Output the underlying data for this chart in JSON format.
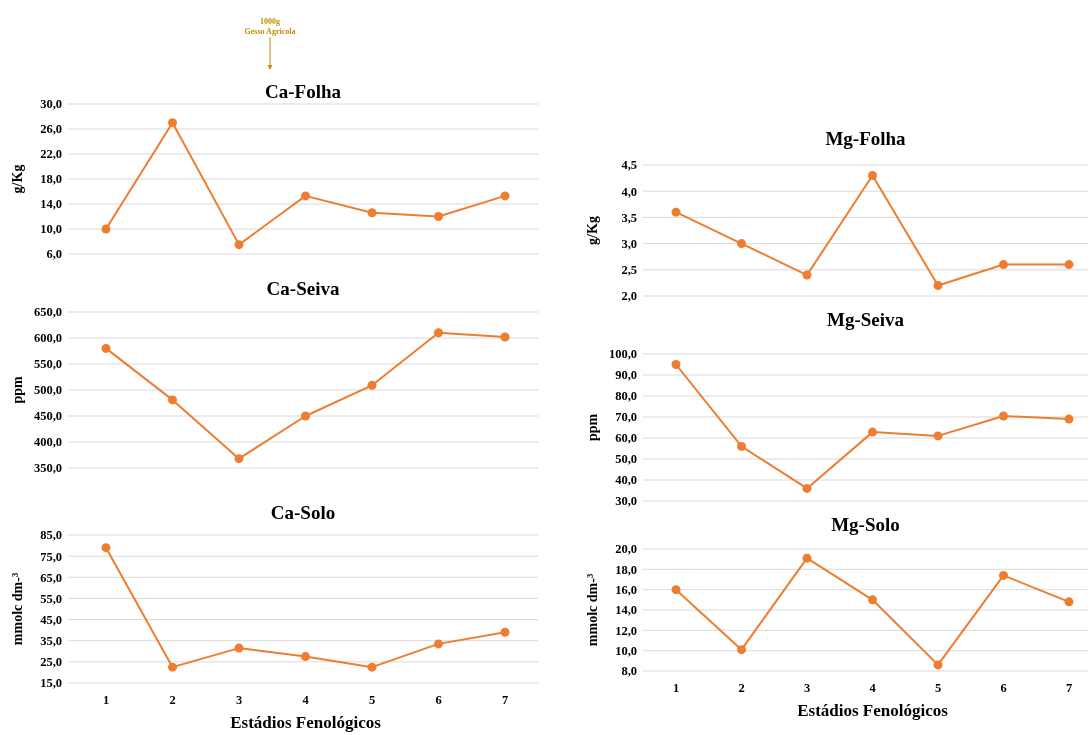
{
  "chart_data": [
    {
      "type": "line",
      "title": "Ca-Folha",
      "ylabel": "g/Kg",
      "categories": [
        null,
        null,
        null,
        null,
        null,
        null,
        null
      ],
      "series": [
        {
          "color": "#ed7d31",
          "values": [
            10,
            27,
            7.5,
            15.3,
            12.6,
            12.0,
            15.3
          ]
        }
      ],
      "ylim": [
        6,
        30
      ],
      "yticks": [
        {
          "value": 6,
          "label": "6,0"
        },
        {
          "value": 10,
          "label": "10,0"
        },
        {
          "value": 14,
          "label": "14,0"
        },
        {
          "value": 18,
          "label": "18,0"
        },
        {
          "value": 22,
          "label": "22,0"
        },
        {
          "value": 26,
          "label": "26,0"
        },
        {
          "value": 30,
          "label": "30,0"
        }
      ],
      "grid": "y",
      "marker": "circle",
      "annotations": [
        "1000g Gesso Agricola"
      ]
    },
    {
      "type": "line",
      "title": "Mg-Folha",
      "ylabel": "g/Kg",
      "categories": [
        null,
        null,
        null,
        null,
        null,
        null,
        null
      ],
      "series": [
        {
          "color": "#ed7d31",
          "values": [
            3.6,
            3.0,
            2.4,
            4.3,
            2.2,
            2.6,
            2.6
          ]
        }
      ],
      "ylim": [
        2,
        4.5
      ],
      "yticks": [
        {
          "value": 2,
          "label": "2,0"
        },
        {
          "value": 2.5,
          "label": "2,5"
        },
        {
          "value": 3,
          "label": "3,0"
        },
        {
          "value": 3.5,
          "label": "3,5"
        },
        {
          "value": 4,
          "label": "4,0"
        },
        {
          "value": 4.5,
          "label": "4,5"
        }
      ],
      "grid": "y",
      "marker": "circle"
    },
    {
      "type": "line",
      "title": "Ca-Seiva",
      "ylabel": "ppm",
      "categories": [
        null,
        null,
        null,
        null,
        null,
        null,
        null
      ],
      "series": [
        {
          "color": "#ed7d31",
          "values": [
            580,
            481,
            368,
            450,
            509,
            610,
            602
          ]
        }
      ],
      "ylim": [
        350,
        650
      ],
      "yticks": [
        {
          "value": 350,
          "label": "350,0"
        },
        {
          "value": 400,
          "label": "400,0"
        },
        {
          "value": 450,
          "label": "450,0"
        },
        {
          "value": 500,
          "label": "500,0"
        },
        {
          "value": 550,
          "label": "550,0"
        },
        {
          "value": 600,
          "label": "600,0"
        },
        {
          "value": 650,
          "label": "650,0"
        }
      ],
      "grid": "y",
      "marker": "circle"
    },
    {
      "type": "line",
      "title": "Mg-Seiva",
      "ylabel": "ppm",
      "categories": [
        null,
        null,
        null,
        null,
        null,
        null,
        null
      ],
      "series": [
        {
          "color": "#ed7d31",
          "values": [
            95,
            56,
            36,
            62.8,
            61,
            70.5,
            69
          ]
        }
      ],
      "ylim": [
        30,
        100
      ],
      "yticks": [
        {
          "value": 30,
          "label": "30,0"
        },
        {
          "value": 40,
          "label": "40,0"
        },
        {
          "value": 50,
          "label": "50,0"
        },
        {
          "value": 60,
          "label": "60,0"
        },
        {
          "value": 70,
          "label": "70,0"
        },
        {
          "value": 80,
          "label": "80,0"
        },
        {
          "value": 90,
          "label": "90,0"
        },
        {
          "value": 100,
          "label": "100,0"
        }
      ],
      "grid": "y",
      "marker": "circle"
    },
    {
      "type": "line",
      "title": "Ca-Solo",
      "ylabel": "mmolc dm-³",
      "xlabel": "Estádios Fenológicos",
      "categories": [
        "1",
        "2",
        "3",
        "4",
        "5",
        "6",
        "7"
      ],
      "series": [
        {
          "color": "#ed7d31",
          "values": [
            79,
            22.5,
            31.5,
            27.5,
            22.5,
            33.5,
            39
          ]
        }
      ],
      "ylim": [
        15,
        85
      ],
      "yticks": [
        {
          "value": 15,
          "label": "15,0"
        },
        {
          "value": 25,
          "label": "25,0"
        },
        {
          "value": 35,
          "label": "35,0"
        },
        {
          "value": 45,
          "label": "45,0"
        },
        {
          "value": 55,
          "label": "55,0"
        },
        {
          "value": 65,
          "label": "65,0"
        },
        {
          "value": 75,
          "label": "75,0"
        },
        {
          "value": 85,
          "label": "85,0"
        }
      ],
      "grid": "y",
      "marker": "circle"
    },
    {
      "type": "line",
      "title": "Mg-Solo",
      "ylabel": "mmolc dm-³",
      "xlabel": "Estádios Fenológicos",
      "categories": [
        "1",
        "2",
        "3",
        "4",
        "5",
        "6",
        "7"
      ],
      "series": [
        {
          "color": "#ed7d31",
          "values": [
            16,
            10.1,
            19.1,
            15,
            8.6,
            17.4,
            14.8
          ]
        }
      ],
      "ylim": [
        8,
        20
      ],
      "yticks": [
        {
          "value": 8,
          "label": "8,0"
        },
        {
          "value": 10,
          "label": "10,0"
        },
        {
          "value": 12,
          "label": "12,0"
        },
        {
          "value": 14,
          "label": "14,0"
        },
        {
          "value": 16,
          "label": "16,0"
        },
        {
          "value": 18,
          "label": "18,0"
        },
        {
          "value": 20,
          "label": "20,0"
        }
      ],
      "grid": "y",
      "marker": "circle"
    }
  ]
}
